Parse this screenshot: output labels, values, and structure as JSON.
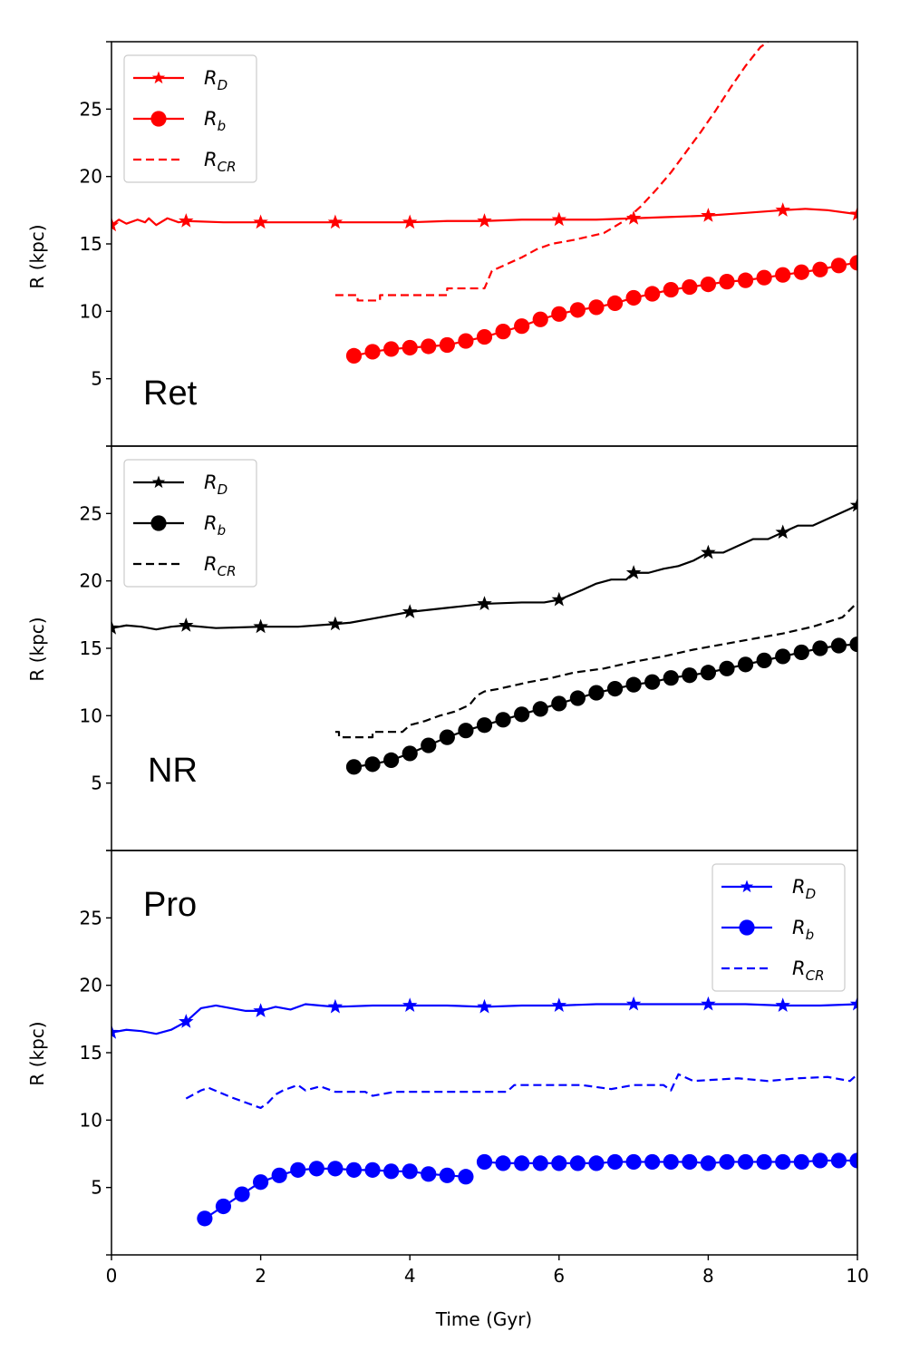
{
  "chart_data": [
    {
      "type": "line",
      "label": "Ret",
      "color": "#ff0000",
      "ylabel": "R (kpc)",
      "xlim": [
        0,
        10
      ],
      "ylim": [
        0,
        30
      ],
      "yticks": [
        "5",
        "10",
        "15",
        "20",
        "25"
      ],
      "legend_position": "top-left",
      "legend": [
        {
          "base": "R",
          "sub": "D",
          "style": "solid-star"
        },
        {
          "base": "R",
          "sub": "b",
          "style": "solid-circle"
        },
        {
          "base": "R",
          "sub": "CR",
          "style": "dashed"
        }
      ],
      "series": [
        {
          "name": "R_D",
          "style": "solid-star",
          "x": [
            0,
            0.1,
            0.2,
            0.35,
            0.45,
            0.5,
            0.6,
            0.75,
            0.9,
            1.0,
            1.5,
            2.0,
            2.5,
            3.0,
            3.5,
            4.0,
            4.5,
            5.0,
            5.5,
            6.0,
            6.5,
            7.0,
            7.5,
            8.0,
            8.5,
            9.0,
            9.3,
            9.6,
            10.0
          ],
          "y": [
            16.4,
            16.8,
            16.5,
            16.8,
            16.6,
            16.9,
            16.4,
            16.9,
            16.6,
            16.7,
            16.6,
            16.6,
            16.6,
            16.6,
            16.6,
            16.6,
            16.7,
            16.7,
            16.8,
            16.8,
            16.8,
            16.9,
            17.0,
            17.1,
            17.3,
            17.5,
            17.6,
            17.5,
            17.2
          ],
          "markers_x": [
            0,
            1,
            2,
            3,
            4,
            5,
            6,
            7,
            8,
            9,
            10
          ],
          "markers_y": [
            16.4,
            16.7,
            16.6,
            16.6,
            16.6,
            16.7,
            16.8,
            16.9,
            17.1,
            17.5,
            17.2
          ]
        },
        {
          "name": "R_b",
          "style": "solid-circle",
          "x": [
            3.25,
            3.5,
            3.75,
            4.0,
            4.25,
            4.5,
            4.75,
            5.0,
            5.25,
            5.5,
            5.75,
            6.0,
            6.25,
            6.5,
            6.75,
            7.0,
            7.25,
            7.5,
            7.75,
            8.0,
            8.25,
            8.5,
            8.75,
            9.0,
            9.25,
            9.5,
            9.75,
            10.0
          ],
          "y": [
            6.7,
            7.0,
            7.2,
            7.3,
            7.4,
            7.5,
            7.8,
            8.1,
            8.5,
            8.9,
            9.4,
            9.8,
            10.1,
            10.3,
            10.6,
            11.0,
            11.3,
            11.6,
            11.8,
            12.0,
            12.2,
            12.3,
            12.5,
            12.7,
            12.9,
            13.1,
            13.4,
            13.6
          ]
        },
        {
          "name": "R_CR",
          "style": "dashed",
          "x": [
            3.0,
            3.3,
            3.3,
            3.6,
            3.6,
            4.5,
            4.5,
            5.0,
            5.1,
            5.3,
            5.5,
            5.7,
            5.9,
            6.2,
            6.6,
            6.9,
            7.1,
            7.3,
            7.5,
            7.7,
            7.9,
            8.1,
            8.3,
            8.5,
            8.7,
            8.8
          ],
          "y": [
            11.2,
            11.2,
            10.8,
            10.8,
            11.2,
            11.2,
            11.7,
            11.7,
            13.0,
            13.5,
            14.0,
            14.6,
            15.0,
            15.3,
            15.8,
            16.8,
            17.8,
            19.0,
            20.3,
            21.8,
            23.3,
            24.9,
            26.6,
            28.2,
            29.6,
            30.0
          ]
        }
      ]
    },
    {
      "type": "line",
      "label": "NR",
      "color": "#000000",
      "ylabel": "R (kpc)",
      "xlim": [
        0,
        10
      ],
      "ylim": [
        0,
        30
      ],
      "yticks": [
        "5",
        "10",
        "15",
        "20",
        "25"
      ],
      "legend_position": "top-left",
      "legend": [
        {
          "base": "R",
          "sub": "D",
          "style": "solid-star"
        },
        {
          "base": "R",
          "sub": "b",
          "style": "solid-circle"
        },
        {
          "base": "R",
          "sub": "CR",
          "style": "dashed"
        }
      ],
      "series": [
        {
          "name": "R_D",
          "style": "solid-star",
          "x": [
            0,
            0.2,
            0.4,
            0.6,
            0.8,
            1.0,
            1.4,
            2.0,
            2.5,
            3.0,
            3.2,
            3.5,
            4.0,
            4.5,
            5.0,
            5.5,
            5.8,
            6.0,
            6.3,
            6.5,
            6.7,
            6.9,
            7.0,
            7.2,
            7.4,
            7.6,
            7.8,
            8.0,
            8.2,
            8.4,
            8.6,
            8.8,
            9.0,
            9.2,
            9.4,
            9.6,
            9.8,
            10.0
          ],
          "y": [
            16.5,
            16.7,
            16.6,
            16.4,
            16.6,
            16.7,
            16.5,
            16.6,
            16.6,
            16.8,
            16.9,
            17.2,
            17.7,
            18.0,
            18.3,
            18.4,
            18.4,
            18.6,
            19.3,
            19.8,
            20.1,
            20.1,
            20.6,
            20.6,
            20.9,
            21.1,
            21.5,
            22.1,
            22.1,
            22.6,
            23.1,
            23.1,
            23.6,
            24.1,
            24.1,
            24.6,
            25.1,
            25.6
          ],
          "markers_x": [
            0,
            1,
            2,
            3,
            4,
            5,
            6,
            7,
            8,
            9,
            10
          ],
          "markers_y": [
            16.5,
            16.7,
            16.6,
            16.8,
            17.7,
            18.3,
            18.6,
            20.6,
            22.1,
            23.6,
            25.6
          ]
        },
        {
          "name": "R_b",
          "style": "solid-circle",
          "x": [
            3.25,
            3.5,
            3.75,
            4.0,
            4.25,
            4.5,
            4.75,
            5.0,
            5.25,
            5.5,
            5.75,
            6.0,
            6.25,
            6.5,
            6.75,
            7.0,
            7.25,
            7.5,
            7.75,
            8.0,
            8.25,
            8.5,
            8.75,
            9.0,
            9.25,
            9.5,
            9.75,
            10.0
          ],
          "y": [
            6.2,
            6.4,
            6.7,
            7.2,
            7.8,
            8.4,
            8.9,
            9.3,
            9.7,
            10.1,
            10.5,
            10.9,
            11.3,
            11.7,
            12.0,
            12.3,
            12.5,
            12.8,
            13.0,
            13.2,
            13.5,
            13.8,
            14.1,
            14.4,
            14.7,
            15.0,
            15.2,
            15.3
          ]
        },
        {
          "name": "R_CR",
          "style": "dashed",
          "x": [
            3.0,
            3.05,
            3.05,
            3.5,
            3.5,
            3.9,
            4.0,
            4.2,
            4.4,
            4.6,
            4.8,
            4.9,
            5.0,
            5.2,
            5.6,
            5.9,
            6.2,
            6.6,
            7.0,
            7.4,
            7.8,
            8.2,
            8.6,
            9.0,
            9.4,
            9.8,
            10.0
          ],
          "y": [
            8.8,
            8.8,
            8.4,
            8.4,
            8.8,
            8.8,
            9.3,
            9.6,
            10.0,
            10.3,
            10.8,
            11.5,
            11.8,
            12.0,
            12.5,
            12.8,
            13.2,
            13.5,
            14.0,
            14.4,
            14.9,
            15.3,
            15.7,
            16.1,
            16.6,
            17.3,
            18.4
          ]
        }
      ]
    },
    {
      "type": "line",
      "label": "Pro",
      "color": "#0000ff",
      "ylabel": "R (kpc)",
      "xlabel": "Time (Gyr)",
      "xlim": [
        0,
        10
      ],
      "ylim": [
        0,
        30
      ],
      "xticks": [
        "0",
        "2",
        "4",
        "6",
        "8",
        "10"
      ],
      "yticks": [
        "5",
        "10",
        "15",
        "20",
        "25"
      ],
      "legend_position": "top-right",
      "legend": [
        {
          "base": "R",
          "sub": "D",
          "style": "solid-star"
        },
        {
          "base": "R",
          "sub": "b",
          "style": "solid-circle"
        },
        {
          "base": "R",
          "sub": "CR",
          "style": "dashed"
        }
      ],
      "series": [
        {
          "name": "R_D",
          "style": "solid-star",
          "x": [
            0,
            0.2,
            0.4,
            0.6,
            0.8,
            1.0,
            1.2,
            1.4,
            1.6,
            1.8,
            2.0,
            2.2,
            2.4,
            2.6,
            2.8,
            3.0,
            3.5,
            4.0,
            4.5,
            5.0,
            5.5,
            6.0,
            6.5,
            7.0,
            7.5,
            8.0,
            8.5,
            9.0,
            9.5,
            10.0
          ],
          "y": [
            16.5,
            16.7,
            16.6,
            16.4,
            16.7,
            17.3,
            18.3,
            18.5,
            18.3,
            18.1,
            18.1,
            18.4,
            18.2,
            18.6,
            18.5,
            18.4,
            18.5,
            18.5,
            18.5,
            18.4,
            18.5,
            18.5,
            18.6,
            18.6,
            18.6,
            18.6,
            18.6,
            18.5,
            18.5,
            18.6
          ],
          "markers_x": [
            0,
            1,
            2,
            3,
            4,
            5,
            6,
            7,
            8,
            9,
            10
          ],
          "markers_y": [
            16.5,
            17.3,
            18.1,
            18.4,
            18.5,
            18.4,
            18.5,
            18.6,
            18.6,
            18.5,
            18.6
          ]
        },
        {
          "name": "R_b",
          "style": "solid-circle",
          "x": [
            1.25,
            1.5,
            1.75,
            2.0,
            2.25,
            2.5,
            2.75,
            3.0,
            3.25,
            3.5,
            3.75,
            4.0,
            4.25,
            4.5,
            4.75,
            5.0,
            5.25,
            5.5,
            5.75,
            6.0,
            6.25,
            6.5,
            6.75,
            7.0,
            7.25,
            7.5,
            7.75,
            8.0,
            8.25,
            8.5,
            8.75,
            9.0,
            9.25,
            9.5,
            9.75,
            10.0
          ],
          "y": [
            2.7,
            3.6,
            4.5,
            5.4,
            5.9,
            6.3,
            6.4,
            6.4,
            6.3,
            6.3,
            6.2,
            6.2,
            6.0,
            5.9,
            5.8,
            6.9,
            6.8,
            6.8,
            6.8,
            6.8,
            6.8,
            6.8,
            6.9,
            6.9,
            6.9,
            6.9,
            6.9,
            6.8,
            6.9,
            6.9,
            6.9,
            6.9,
            6.9,
            7.0,
            7.0,
            7.0
          ],
          "line_breaks": [
            15
          ]
        },
        {
          "name": "R_CR",
          "style": "dashed",
          "x": [
            1.0,
            1.2,
            1.3,
            1.6,
            1.8,
            2.0,
            2.1,
            2.2,
            2.3,
            2.5,
            2.6,
            2.8,
            3.0,
            3.4,
            3.5,
            3.8,
            4.0,
            5.3,
            5.4,
            6.3,
            6.7,
            7.0,
            7.4,
            7.5,
            7.6,
            7.8,
            8.4,
            8.8,
            9.2,
            9.6,
            9.9,
            10.0
          ],
          "y": [
            11.6,
            12.2,
            12.4,
            11.7,
            11.3,
            10.9,
            11.3,
            11.9,
            12.2,
            12.6,
            12.2,
            12.5,
            12.1,
            12.1,
            11.8,
            12.1,
            12.1,
            12.1,
            12.6,
            12.6,
            12.3,
            12.6,
            12.6,
            12.2,
            13.4,
            12.9,
            13.1,
            12.9,
            13.1,
            13.2,
            12.9,
            13.4
          ]
        }
      ]
    }
  ]
}
